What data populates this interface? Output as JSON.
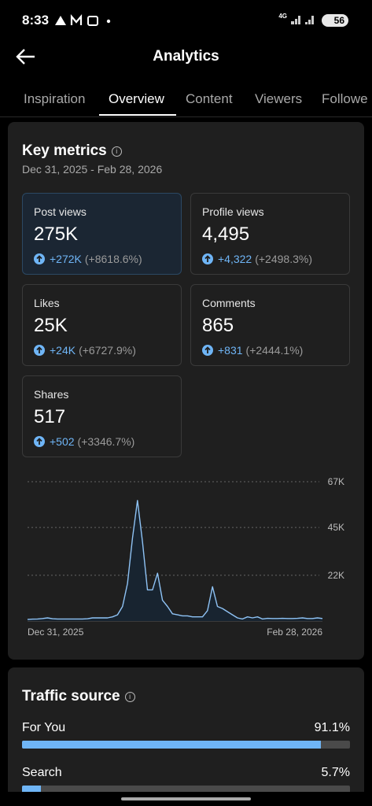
{
  "status_bar": {
    "time": "8:33",
    "network": "4G",
    "battery": "56"
  },
  "header": {
    "title": "Analytics"
  },
  "tabs": [
    "Inspiration",
    "Overview",
    "Content",
    "Viewers",
    "Followe"
  ],
  "key_metrics": {
    "title": "Key metrics",
    "date_range": "Dec 31, 2025 - Feb 28, 2026",
    "metrics": [
      {
        "label": "Post views",
        "value": "275K",
        "change": "+272K",
        "percent": "(+8618.6%)"
      },
      {
        "label": "Profile views",
        "value": "4,495",
        "change": "+4,322",
        "percent": "(+2498.3%)"
      },
      {
        "label": "Likes",
        "value": "25K",
        "change": "+24K",
        "percent": "(+6727.9%)"
      },
      {
        "label": "Comments",
        "value": "865",
        "change": "+831",
        "percent": "(+2444.1%)"
      },
      {
        "label": "Shares",
        "value": "517",
        "change": "+502",
        "percent": "(+3346.7%)"
      }
    ]
  },
  "chart": {
    "type": "area",
    "color": "#8fc3f5",
    "xlabels": [
      "Dec 31, 2025",
      "Feb 28, 2026"
    ],
    "ylim": [
      0,
      67000
    ],
    "yticks": [
      {
        "value": 22000,
        "label": "22K"
      },
      {
        "value": 45000,
        "label": "45K"
      },
      {
        "value": 67000,
        "label": "67K"
      }
    ],
    "values": [
      800,
      900,
      1000,
      1200,
      1500,
      1100,
      1000,
      1000,
      1000,
      1000,
      1000,
      1000,
      1100,
      1500,
      1500,
      1500,
      1500,
      2000,
      3000,
      7000,
      18000,
      40000,
      58000,
      38000,
      15000,
      15000,
      23000,
      10000,
      7000,
      3500,
      3000,
      2500,
      2500,
      2000,
      2000,
      2000,
      5000,
      16500,
      7000,
      6000,
      4500,
      3000,
      1500,
      1000,
      2000,
      1500,
      2000,
      1000,
      1300,
      1200,
      1200,
      1300,
      1200,
      1200,
      1300,
      1500,
      1200,
      1200,
      1500,
      1200
    ]
  },
  "traffic_source": {
    "title": "Traffic source",
    "sources": [
      {
        "name": "For You",
        "value": 91.1,
        "label": "91.1%"
      },
      {
        "name": "Search",
        "value": 5.7,
        "label": "5.7%"
      }
    ]
  }
}
